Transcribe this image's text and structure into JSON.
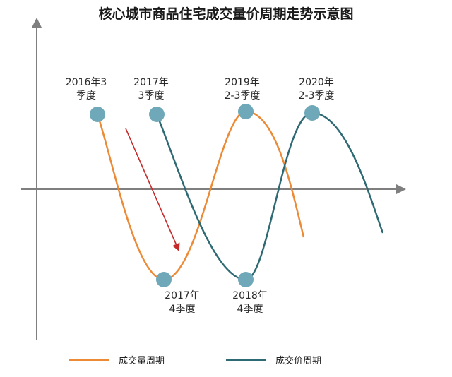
{
  "title": "核心城市商品住宅成交量价周期走势示意图",
  "colors": {
    "volume": "#EC8A36",
    "price": "#2E6A74",
    "marker": "#6FA8B8",
    "axis": "#7f7f7f",
    "arrow": "#C62B2B"
  },
  "annotations": [
    {
      "id": "vol-peak-2016",
      "lines": [
        "2016年3",
        "季度"
      ]
    },
    {
      "id": "price-peak-2017",
      "lines": [
        "2017年",
        "3季度"
      ]
    },
    {
      "id": "vol-peak-2019",
      "lines": [
        "2019年",
        "2-3季度"
      ]
    },
    {
      "id": "price-peak-2020",
      "lines": [
        "2020年",
        "2-3季度"
      ]
    },
    {
      "id": "vol-trough-2017",
      "lines": [
        "2017年",
        "4季度"
      ]
    },
    {
      "id": "price-trough-2018",
      "lines": [
        "2018年",
        "4季度"
      ]
    }
  ],
  "legend": [
    {
      "series": "volume",
      "label": "成交量周期"
    },
    {
      "series": "price",
      "label": "成交价周期"
    }
  ]
}
